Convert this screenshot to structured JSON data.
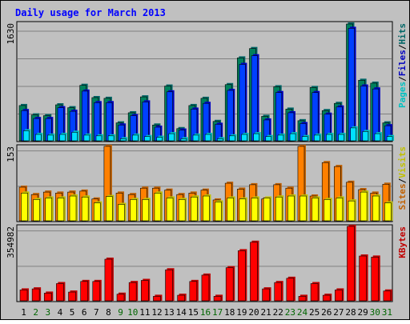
{
  "chart_data": {
    "type": "bar",
    "title": "Daily usage for March 2013",
    "categories": [
      "1",
      "2",
      "3",
      "4",
      "5",
      "6",
      "7",
      "8",
      "9",
      "10",
      "11",
      "12",
      "13",
      "14",
      "15",
      "16",
      "17",
      "18",
      "19",
      "20",
      "21",
      "22",
      "23",
      "24",
      "25",
      "26",
      "27",
      "28",
      "29",
      "30",
      "31"
    ],
    "weekend_days": [
      "2",
      "3",
      "9",
      "10",
      "16",
      "17",
      "23",
      "24",
      "30",
      "31"
    ],
    "colors": {
      "hits": "#006666",
      "hits_face": "#00805c",
      "files": "#0000c0",
      "files_face": "#0040ff",
      "pages": "#00c0c0",
      "pages_face": "#00e0ff",
      "visits": "#c0c000",
      "visits_face": "#ffff00",
      "sites": "#c06000",
      "sites_face": "#ff8000",
      "kbytes": "#c00000",
      "kbytes_face": "#ff0000",
      "title": "#0000ff",
      "weekday_label": "#000000",
      "weekend_label": "#006600",
      "plot_bg": "#c0c0c0",
      "frame_bg": "#c0c0c0"
    },
    "panels": [
      {
        "id": "hits-files-pages",
        "ymax_label": "1630",
        "ymax": 1630,
        "legend": [
          {
            "label": "Pages",
            "color": "#00c0c0"
          },
          {
            "label": "/",
            "color": "#000000"
          },
          {
            "label": "Files",
            "color": "#0000c0"
          },
          {
            "label": "/",
            "color": "#000000"
          },
          {
            "label": "Hits",
            "color": "#006666"
          }
        ],
        "series": [
          {
            "name": "Hits",
            "key": "hits",
            "values": [
              500,
              370,
              360,
              510,
              470,
              780,
              610,
              600,
              260,
              400,
              620,
              230,
              770,
              180,
              500,
              600,
              280,
              790,
              1160,
              1290,
              350,
              760,
              450,
              290,
              750,
              430,
              530,
              1630,
              850,
              810,
              260
            ]
          },
          {
            "name": "Files",
            "key": "files",
            "values": [
              430,
              320,
              320,
              470,
              420,
              700,
              540,
              540,
              230,
              360,
              550,
              200,
              690,
              160,
              450,
              530,
              240,
              710,
              1070,
              1190,
              300,
              680,
              400,
              250,
              680,
              380,
              480,
              1570,
              770,
              730,
              220
            ]
          },
          {
            "name": "Pages",
            "key": "pages",
            "values": [
              150,
              100,
              90,
              100,
              130,
              90,
              80,
              80,
              40,
              90,
              70,
              60,
              110,
              40,
              90,
              100,
              40,
              80,
              100,
              110,
              70,
              90,
              110,
              70,
              90,
              100,
              100,
              190,
              140,
              110,
              70
            ]
          }
        ]
      },
      {
        "id": "visits-sites",
        "ymax_label": "153",
        "ymax": 153,
        "legend": [
          {
            "label": "Sites",
            "color": "#c06000"
          },
          {
            "label": "/",
            "color": "#000000"
          },
          {
            "label": "Visits",
            "color": "#c0c000"
          }
        ],
        "series": [
          {
            "name": "Sites",
            "key": "sites",
            "values": [
              70,
              55,
              60,
              58,
              60,
              62,
              46,
              153,
              58,
              55,
              68,
              68,
              64,
              55,
              58,
              64,
              44,
              78,
              66,
              75,
              46,
              75,
              68,
              153,
              52,
              120,
              112,
              80,
              65,
              58,
              76
            ]
          },
          {
            "name": "Visits",
            "key": "visits",
            "values": [
              58,
              45,
              48,
              48,
              52,
              50,
              38,
              51,
              35,
              45,
              45,
              58,
              48,
              45,
              50,
              52,
              40,
              48,
              46,
              48,
              48,
              50,
              52,
              52,
              48,
              45,
              48,
              42,
              60,
              52,
              38
            ]
          }
        ]
      },
      {
        "id": "kbytes",
        "ymax_label": "354982",
        "ymax": 354982,
        "legend": [
          {
            "label": "KBytes",
            "color": "#c00000"
          }
        ],
        "series": [
          {
            "name": "KBytes",
            "key": "kbytes",
            "values": [
              55000,
              60000,
              40000,
              85000,
              45000,
              95000,
              95000,
              200000,
              35000,
              90000,
              100000,
              25000,
              150000,
              30000,
              95000,
              125000,
              25000,
              160000,
              240000,
              280000,
              60000,
              90000,
              110000,
              25000,
              85000,
              30000,
              55000,
              354982,
              215000,
              210000,
              50000
            ]
          }
        ]
      }
    ]
  }
}
